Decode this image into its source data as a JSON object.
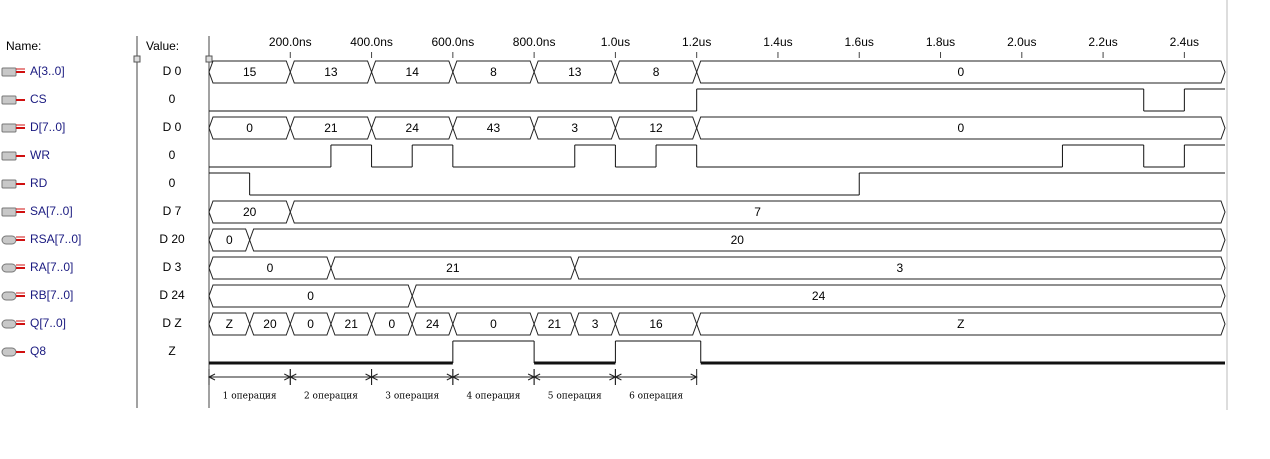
{
  "header": {
    "name_label": "Name:",
    "value_label": "Value:"
  },
  "time_axis": {
    "xlim": [
      0,
      2500
    ],
    "ticks": [
      {
        "value": 200,
        "label": "200.0ns"
      },
      {
        "value": 400,
        "label": "400.0ns"
      },
      {
        "value": 600,
        "label": "600.0ns"
      },
      {
        "value": 800,
        "label": "800.0ns"
      },
      {
        "value": 1000,
        "label": "1.0us"
      },
      {
        "value": 1200,
        "label": "1.2us"
      },
      {
        "value": 1400,
        "label": "1.4us"
      },
      {
        "value": 1600,
        "label": "1.6us"
      },
      {
        "value": 1800,
        "label": "1.8us"
      },
      {
        "value": 2000,
        "label": "2.0us"
      },
      {
        "value": 2200,
        "label": "2.2us"
      },
      {
        "value": 2400,
        "label": "2.4us"
      }
    ]
  },
  "signals": [
    {
      "name": "A[3..0]",
      "value": "D 0",
      "kind": "bus",
      "segments": [
        {
          "t": 0,
          "label": 15
        },
        {
          "t": 200,
          "label": 13
        },
        {
          "t": 400,
          "label": 14
        },
        {
          "t": 600,
          "label": 8
        },
        {
          "t": 800,
          "label": 13
        },
        {
          "t": 1000,
          "label": 8
        },
        {
          "t": 1200,
          "label": 0
        }
      ]
    },
    {
      "name": "CS",
      "value": "0",
      "kind": "bit",
      "levels": [
        {
          "t": 0,
          "v": 0
        },
        {
          "t": 1200,
          "v": 1
        },
        {
          "t": 2300,
          "v": 0
        },
        {
          "t": 2400,
          "v": 1
        }
      ]
    },
    {
      "name": "D[7..0]",
      "value": "D 0",
      "kind": "bus",
      "segments": [
        {
          "t": 0,
          "label": 0
        },
        {
          "t": 200,
          "label": 21
        },
        {
          "t": 400,
          "label": 24
        },
        {
          "t": 600,
          "label": 43
        },
        {
          "t": 800,
          "label": 3
        },
        {
          "t": 1000,
          "label": 12
        },
        {
          "t": 1200,
          "label": 0
        }
      ]
    },
    {
      "name": "WR",
      "value": "0",
      "kind": "bit",
      "levels": [
        {
          "t": 0,
          "v": 0
        },
        {
          "t": 300,
          "v": 1
        },
        {
          "t": 400,
          "v": 0
        },
        {
          "t": 500,
          "v": 1
        },
        {
          "t": 600,
          "v": 0
        },
        {
          "t": 900,
          "v": 1
        },
        {
          "t": 1000,
          "v": 0
        },
        {
          "t": 1100,
          "v": 1
        },
        {
          "t": 1200,
          "v": 0
        },
        {
          "t": 2100,
          "v": 1
        },
        {
          "t": 2300,
          "v": 0
        },
        {
          "t": 2400,
          "v": 1
        }
      ]
    },
    {
      "name": "RD",
      "value": "0",
      "kind": "bit",
      "levels": [
        {
          "t": 0,
          "v": 1
        },
        {
          "t": 100,
          "v": 0
        },
        {
          "t": 1600,
          "v": 1
        }
      ]
    },
    {
      "name": "SA[7..0]",
      "value": "D 7",
      "kind": "bus",
      "segments": [
        {
          "t": 0,
          "label": 20
        },
        {
          "t": 200,
          "label": 7
        }
      ]
    },
    {
      "name": "RSA[7..0]",
      "value": "D 20",
      "kind": "bus",
      "segments": [
        {
          "t": 0,
          "label": 0
        },
        {
          "t": 100,
          "label": 20
        }
      ]
    },
    {
      "name": "RA[7..0]",
      "value": "D 3",
      "kind": "bus",
      "segments": [
        {
          "t": 0,
          "label": 0
        },
        {
          "t": 300,
          "label": 21
        },
        {
          "t": 900,
          "label": 3
        }
      ]
    },
    {
      "name": "RB[7..0]",
      "value": "D 24",
      "kind": "bus",
      "segments": [
        {
          "t": 0,
          "label": 0
        },
        {
          "t": 500,
          "label": 24
        }
      ]
    },
    {
      "name": "Q[7..0]",
      "value": "D Z",
      "kind": "bus",
      "segments": [
        {
          "t": 0,
          "label": "Z"
        },
        {
          "t": 100,
          "label": 20
        },
        {
          "t": 200,
          "label": 0
        },
        {
          "t": 300,
          "label": 21
        },
        {
          "t": 400,
          "label": 0
        },
        {
          "t": 500,
          "label": 24
        },
        {
          "t": 600,
          "label": 0
        },
        {
          "t": 800,
          "label": 21
        },
        {
          "t": 900,
          "label": 3
        },
        {
          "t": 1000,
          "label": 16
        },
        {
          "t": 1200,
          "label": "Z"
        }
      ]
    },
    {
      "name": "Q8",
      "value": "Z",
      "kind": "bit",
      "levels": [
        {
          "t": 0,
          "v": "Z"
        },
        {
          "t": 600,
          "v": 1
        },
        {
          "t": 800,
          "v": "Z"
        },
        {
          "t": 1000,
          "v": 1
        },
        {
          "t": 1210,
          "v": "Z"
        }
      ]
    }
  ],
  "operations": [
    {
      "label": "1 операция",
      "start": 0,
      "end": 200
    },
    {
      "label": "2 операция",
      "start": 200,
      "end": 400
    },
    {
      "label": "3 операция",
      "start": 400,
      "end": 600
    },
    {
      "label": "4 операция",
      "start": 600,
      "end": 800
    },
    {
      "label": "5 операция",
      "start": 800,
      "end": 1000
    },
    {
      "label": "6 операция",
      "start": 1000,
      "end": 1200
    }
  ]
}
